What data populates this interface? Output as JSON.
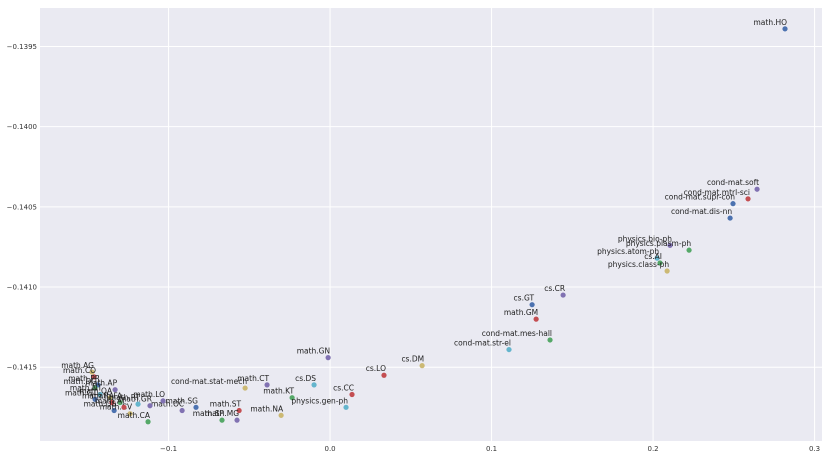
{
  "chart_data": {
    "type": "scatter",
    "grid": true,
    "xlim": [
      -0.1796,
      0.3046
    ],
    "ylim": [
      -0.14196,
      -0.13926
    ],
    "xticks": [
      {
        "value": -0.1,
        "label": "−0.1"
      },
      {
        "value": 0,
        "label": "0.0"
      },
      0.1,
      0.2,
      0.3
    ],
    "yticks": [
      {
        "value": -0.1395,
        "label": "−0.1395"
      },
      {
        "value": -0.14,
        "label": "−0.1400"
      },
      {
        "value": -0.1405,
        "label": "−0.1405"
      },
      {
        "value": -0.141,
        "label": "−0.1410"
      },
      {
        "value": -0.1415,
        "label": "−0.1415"
      }
    ],
    "labels": [
      "math.HO",
      "cond-mat.soft",
      "cond-mat.mtrl-sci",
      "cond-mat.supr-con",
      "cond-mat.dis-nn",
      "physics.bio-ph",
      "physics.plasm-ph",
      "physics.atom-ph",
      "cs.AI",
      "physics.class-ph",
      "cs.CR",
      "cs.GT",
      "math.GM",
      "cond-mat.mes-hall",
      "cond-mat.str-el",
      "math.GN",
      "cs.DM",
      "cs.LO",
      "cs.CC",
      "cs.DS",
      "math.CT",
      "cond-mat.stat-mech",
      "math.KT",
      "physics.gen-ph",
      "math.ST",
      "math.NA",
      "math.MG",
      "math.SP",
      "math.OC",
      "math.SG",
      "math.AG",
      "math.CO",
      "math.PR",
      "math.DG",
      "math.AP",
      "math.NT",
      "math.QA",
      "math.GT",
      "math.RA",
      "math.FA",
      "math.LO",
      "math.RT",
      "math.DS",
      "math.CV",
      "math.CA",
      "math.AT",
      "math.GR"
    ],
    "x": [
      0.2817,
      0.2644,
      0.2588,
      0.2495,
      0.2477,
      0.2105,
      0.2223,
      0.2025,
      0.2043,
      0.2087,
      0.1443,
      0.1251,
      0.1276,
      0.1362,
      0.1108,
      -0.0012,
      0.057,
      0.0334,
      0.0136,
      -0.0099,
      -0.039,
      -0.0526,
      -0.0235,
      0.0099,
      -0.0563,
      -0.0303,
      -0.0576,
      -0.0669,
      -0.0916,
      -0.083,
      -0.1474,
      -0.1461,
      -0.1437,
      -0.1455,
      -0.1331,
      -0.1424,
      -0.1362,
      -0.1455,
      -0.135,
      -0.13,
      -0.1034,
      -0.1189,
      -0.1337,
      -0.1238,
      -0.1127,
      -0.1276,
      -0.1115
    ],
    "values": [
      -0.13939,
      -0.14039,
      -0.14045,
      -0.14048,
      -0.14057,
      -0.14074,
      -0.14077,
      -0.14082,
      -0.14085,
      -0.1409,
      -0.14105,
      -0.14111,
      -0.1412,
      -0.14133,
      -0.14139,
      -0.14144,
      -0.14149,
      -0.14155,
      -0.14167,
      -0.14161,
      -0.14161,
      -0.14163,
      -0.14169,
      -0.14175,
      -0.14177,
      -0.1418,
      -0.14183,
      -0.14183,
      -0.14177,
      -0.14175,
      -0.14153,
      -0.14156,
      -0.14161,
      -0.14163,
      -0.14164,
      -0.14167,
      -0.14169,
      -0.1417,
      -0.14172,
      -0.14172,
      -0.14171,
      -0.14173,
      -0.14177,
      -0.14179,
      -0.14184,
      -0.14175,
      -0.14174
    ],
    "colors": [
      "#4c72b0",
      "#8172b2",
      "#c44e52",
      "#4c72b0",
      "#4c72b0",
      "#8172b2",
      "#55a868",
      "#64b5cd",
      "#55a868",
      "#ccb974",
      "#8172b2",
      "#4c72b0",
      "#c44e52",
      "#55a868",
      "#64b5cd",
      "#8172b2",
      "#ccb974",
      "#c44e52",
      "#c44e52",
      "#64b5cd",
      "#8172b2",
      "#ccb974",
      "#55a868",
      "#64b5cd",
      "#c44e52",
      "#ccb974",
      "#8172b2",
      "#55a868",
      "#8172b2",
      "#4c72b0",
      "#ccb974",
      "#c44e52",
      "#4c72b0",
      "#55a868",
      "#8172b2",
      "#64b5cd",
      "#ccb974",
      "#4c72b0",
      "#c44e52",
      "#55a868",
      "#8172b2",
      "#64b5cd",
      "#4c72b0",
      "#ccb974",
      "#55a868",
      "#c44e52",
      "#8172b2"
    ]
  }
}
